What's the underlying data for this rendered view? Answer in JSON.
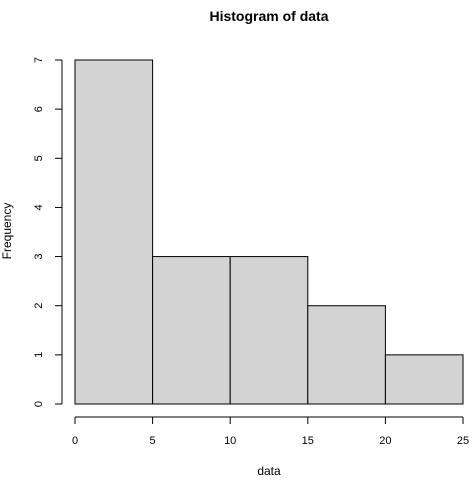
{
  "chart_data": {
    "type": "bar",
    "title": "Histogram of data",
    "xlabel": "data",
    "ylabel": "Frequency",
    "bins": [
      {
        "start": 0,
        "end": 5,
        "value": 7
      },
      {
        "start": 5,
        "end": 10,
        "value": 3
      },
      {
        "start": 10,
        "end": 15,
        "value": 3
      },
      {
        "start": 15,
        "end": 20,
        "value": 2
      },
      {
        "start": 20,
        "end": 25,
        "value": 1
      }
    ],
    "xlim": [
      0,
      25
    ],
    "ylim": [
      0,
      7
    ],
    "x_ticks": [
      "0",
      "5",
      "10",
      "15",
      "20",
      "25"
    ],
    "y_ticks": [
      "0",
      "1",
      "2",
      "3",
      "4",
      "5",
      "6",
      "7"
    ],
    "grid": false,
    "colors": {
      "bar_fill": "#d3d3d3",
      "bar_stroke": "#000000"
    }
  }
}
